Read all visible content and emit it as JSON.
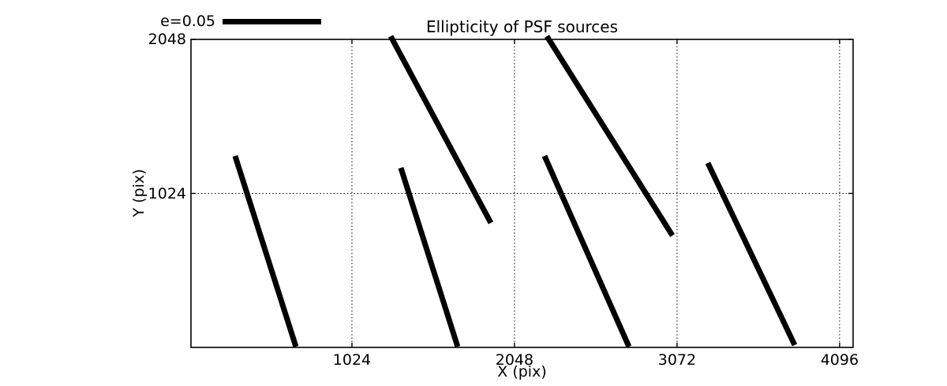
{
  "figure": {
    "title": "Ellipticity of PSF sources",
    "xlabel": "X (pix)",
    "ylabel": "Y (pix)",
    "legend_label": "e=0.05",
    "colors": {
      "foreground": "#000000",
      "background": "#ffffff"
    }
  },
  "chart_data": {
    "type": "line",
    "subtype": "ellipticity-whisker-plot",
    "title": "Ellipticity of PSF sources",
    "xlabel": "X (pix)",
    "ylabel": "Y (pix)",
    "xlim": [
      10,
      4181
    ],
    "ylim": [
      0,
      2048
    ],
    "xticks": [
      1024,
      2048,
      3072,
      4096
    ],
    "yticks": [
      1024,
      2048
    ],
    "grid": true,
    "grid_style": "dotted",
    "legend": {
      "label": "e=0.05",
      "e_value": 0.05,
      "position": "above-axes-upper-left"
    },
    "series_description": "PSF ellipticity whiskers; straight unclipped black segments, endpoints in detector pixel units",
    "segments": [
      {
        "x1": 288,
        "y1": 1273,
        "x2": 671,
        "y2": 5
      },
      {
        "x1": 1332,
        "y1": 1194,
        "x2": 1690,
        "y2": 5
      },
      {
        "x1": 1268,
        "y1": 2069,
        "x2": 1899,
        "y2": 828
      },
      {
        "x1": 2237,
        "y1": 1273,
        "x2": 2769,
        "y2": 5
      },
      {
        "x1": 2252,
        "y1": 2069,
        "x2": 3043,
        "y2": 744
      },
      {
        "x1": 3266,
        "y1": 1226,
        "x2": 3813,
        "y2": 16
      }
    ]
  }
}
